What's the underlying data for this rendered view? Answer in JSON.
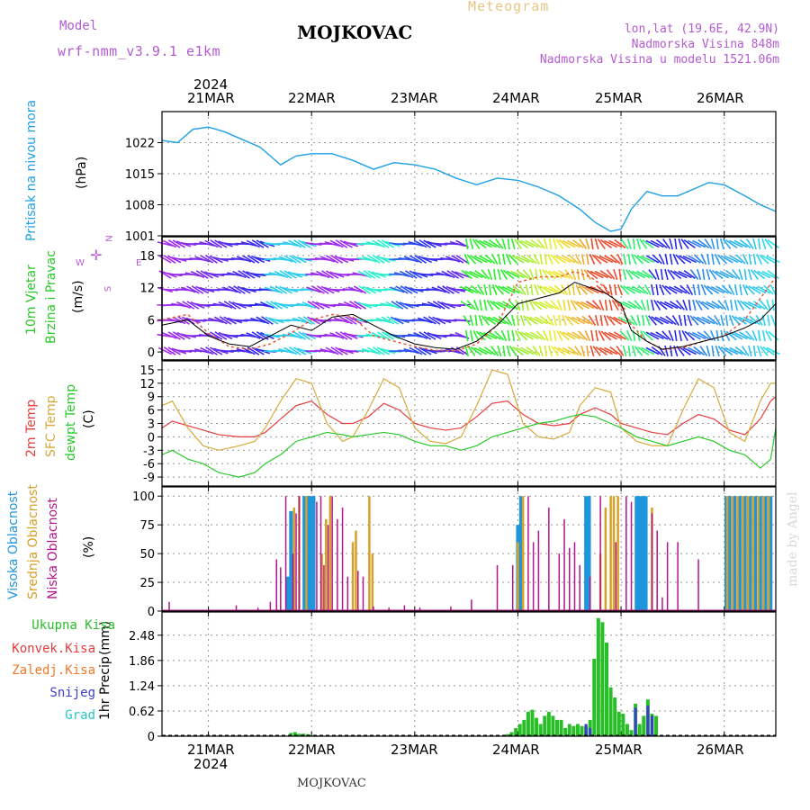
{
  "header": {
    "model_label": "Model",
    "model_name": "wrf-nmm_v3.9.1  e1km",
    "title": "MOJKOVAC",
    "subtitle": "Meteogram",
    "coords": "lon,lat (19.6E, 42.9N)",
    "altitude": "Nadmorska Visina 848m",
    "model_altitude": "Nadmorska Visina u modelu 1521.06m"
  },
  "footer": {
    "station": "MOJKOVAC",
    "credit": "made by Angel"
  },
  "colors": {
    "pressure": "#1ea0e6",
    "temp2m": "#e63c3c",
    "sfc": "#d7aa3c",
    "dewpt": "#28c828",
    "high_cloud": "#1e96dc",
    "mid_cloud": "#d7a028",
    "low_cloud": "#b4148c",
    "total_precip": "#28be28",
    "conv_precip": "#e63c3c",
    "frz_precip": "#f07828",
    "snow": "#3c3cd2",
    "graupel": "#28c8c8",
    "wind_speed": "#000000",
    "wind_gust": "#e65a3c"
  },
  "time_axis": {
    "top_year": "2024",
    "bottom_year": "2024",
    "labels": [
      "21MAR",
      "22MAR",
      "23MAR",
      "24MAR",
      "25MAR",
      "26MAR"
    ]
  },
  "chart_data": [
    {
      "type": "line",
      "panel": "pressure",
      "ylabel": "Pritisak na nivou mora",
      "unit": "(hPa)",
      "yticks": [
        "1001",
        "1008",
        "1015",
        "1022"
      ],
      "ylim": [
        1001,
        1029
      ],
      "xlim": [
        20.55,
        26.5
      ],
      "series": [
        {
          "x": [
            20.55,
            20.7,
            20.85,
            21.0,
            21.15,
            21.3,
            21.5,
            21.7,
            21.85,
            22.0,
            22.2,
            22.4,
            22.6,
            22.8,
            23.0,
            23.2,
            23.4,
            23.6,
            23.8,
            24.0,
            24.2,
            24.4,
            24.6,
            24.75,
            24.9,
            25.0,
            25.1,
            25.25,
            25.4,
            25.55,
            25.7,
            25.85,
            26.0,
            26.2,
            26.35,
            26.5
          ],
          "y": [
            1022.5,
            1022,
            1025,
            1025.5,
            1024.5,
            1023,
            1021,
            1017,
            1019,
            1019.5,
            1019.5,
            1018,
            1016,
            1017.5,
            1017,
            1016,
            1014,
            1012.5,
            1014,
            1013.5,
            1012,
            1010,
            1007,
            1004,
            1002,
            1002.5,
            1007,
            1011,
            1010,
            1010,
            1011.5,
            1013,
            1012.5,
            1010,
            1008,
            1006.5
          ]
        }
      ]
    },
    {
      "type": "line",
      "panel": "wind",
      "ylabel": "10m Vjetar",
      "ylabel2": "Brzina i Pravac",
      "unit": "(m/s)",
      "yticks": [
        "0",
        "6",
        "12",
        "18"
      ],
      "ylim": [
        -1.5,
        21.5
      ],
      "xlim": [
        20.55,
        26.5
      ],
      "compass": {
        "n": "N",
        "e": "E",
        "w": "W",
        "s": "S"
      },
      "series": [
        {
          "name": "speed",
          "x": [
            20.55,
            20.8,
            21.0,
            21.2,
            21.4,
            21.6,
            21.8,
            22.0,
            22.2,
            22.4,
            22.6,
            22.8,
            23.0,
            23.2,
            23.4,
            23.6,
            23.8,
            24.0,
            24.2,
            24.4,
            24.55,
            24.7,
            24.85,
            25.0,
            25.1,
            25.25,
            25.4,
            25.6,
            25.8,
            26.0,
            26.2,
            26.35,
            26.5
          ],
          "y": [
            5,
            6,
            3,
            1.5,
            1,
            3,
            5,
            4,
            6.5,
            7,
            5,
            3,
            1.5,
            0.8,
            0.5,
            2,
            5,
            9,
            10,
            11,
            13,
            12,
            11,
            9,
            4,
            2,
            0.5,
            1,
            2,
            3,
            4.5,
            6,
            9
          ]
        },
        {
          "name": "gust",
          "x": [
            20.55,
            20.8,
            21.0,
            21.2,
            21.4,
            21.6,
            21.8,
            22.0,
            22.2,
            22.4,
            22.6,
            22.8,
            23.0,
            23.2,
            23.4,
            23.6,
            23.8,
            24.0,
            24.2,
            24.4,
            24.55,
            24.7,
            24.85,
            25.0,
            25.1,
            25.25,
            25.4,
            25.6,
            25.8,
            26.0,
            26.2,
            26.35,
            26.5
          ],
          "y": [
            6,
            7,
            3.5,
            1,
            0.5,
            1.5,
            3.5,
            6,
            7,
            6.5,
            3,
            2,
            1,
            0.3,
            0.2,
            1.5,
            5,
            13,
            14,
            14,
            15,
            14,
            12,
            8,
            5,
            2,
            0.5,
            0.8,
            2,
            3,
            6,
            10,
            14
          ]
        }
      ]
    },
    {
      "type": "line",
      "panel": "temperature",
      "ylabel": "2m Temp",
      "ylabel2": "SFC Temp",
      "ylabel3": "dewpt Temp",
      "unit": "(C)",
      "yticks": [
        "-9",
        "-6",
        "-3",
        "0",
        "3",
        "6",
        "9",
        "12",
        "15"
      ],
      "ylim": [
        -11,
        17
      ],
      "xlim": [
        20.55,
        26.5
      ],
      "series": [
        {
          "name": "2m",
          "x": [
            20.55,
            20.65,
            20.8,
            20.95,
            21.1,
            21.3,
            21.45,
            21.55,
            21.7,
            21.85,
            22.0,
            22.15,
            22.3,
            22.4,
            22.55,
            22.7,
            22.85,
            23.0,
            23.15,
            23.3,
            23.45,
            23.6,
            23.75,
            23.9,
            24.05,
            24.2,
            24.35,
            24.5,
            24.6,
            24.75,
            24.9,
            25.0,
            25.15,
            25.3,
            25.45,
            25.6,
            25.75,
            25.9,
            26.05,
            26.2,
            26.35,
            26.45,
            26.5
          ],
          "y": [
            2,
            3.5,
            2.5,
            1.5,
            0.5,
            0,
            0,
            1,
            4,
            7,
            8,
            5,
            3,
            3,
            4.5,
            7.5,
            6,
            3,
            2,
            1.5,
            2,
            4.5,
            7.5,
            8,
            5,
            3,
            2.5,
            3,
            5,
            6.5,
            5,
            3,
            2,
            1,
            0.5,
            3,
            5,
            4,
            1.5,
            0.5,
            4,
            8,
            9
          ]
        },
        {
          "name": "sfc",
          "x": [
            20.55,
            20.65,
            20.8,
            20.95,
            21.1,
            21.3,
            21.45,
            21.55,
            21.7,
            21.85,
            22.0,
            22.15,
            22.3,
            22.4,
            22.55,
            22.7,
            22.85,
            23.0,
            23.15,
            23.3,
            23.45,
            23.6,
            23.75,
            23.9,
            24.05,
            24.2,
            24.35,
            24.5,
            24.6,
            24.75,
            24.9,
            25.0,
            25.15,
            25.3,
            25.45,
            25.6,
            25.75,
            25.9,
            26.05,
            26.2,
            26.35,
            26.45,
            26.5
          ],
          "y": [
            7,
            8,
            2,
            -2,
            -3,
            -2,
            -1,
            2,
            8,
            13,
            12,
            3,
            -1,
            0,
            6,
            13,
            11,
            2,
            -1,
            -1.5,
            0,
            7,
            15,
            14,
            3,
            0,
            -0.5,
            1,
            7,
            11,
            10,
            2,
            -1,
            -2,
            -2,
            6,
            13,
            11,
            1,
            -1,
            8,
            12,
            12
          ]
        },
        {
          "name": "dewpt",
          "x": [
            20.55,
            20.65,
            20.8,
            20.95,
            21.1,
            21.3,
            21.45,
            21.55,
            21.7,
            21.85,
            22.0,
            22.15,
            22.3,
            22.4,
            22.55,
            22.7,
            22.85,
            23.0,
            23.15,
            23.3,
            23.45,
            23.6,
            23.75,
            23.9,
            24.05,
            24.2,
            24.35,
            24.5,
            24.6,
            24.75,
            24.9,
            25.0,
            25.15,
            25.3,
            25.45,
            25.6,
            25.75,
            25.9,
            26.05,
            26.2,
            26.35,
            26.45,
            26.5
          ],
          "y": [
            -4,
            -3,
            -5,
            -6,
            -8,
            -9,
            -8,
            -6,
            -4,
            -1,
            0,
            1,
            0.5,
            0,
            0.5,
            1,
            0.5,
            -1,
            -2,
            -2,
            -3,
            -2,
            0,
            1,
            2,
            3,
            3.5,
            4.5,
            5,
            4.5,
            3,
            2,
            0,
            -1,
            -2,
            -1,
            0,
            -1,
            -3,
            -4,
            -7,
            -5,
            2
          ]
        }
      ]
    },
    {
      "type": "bar",
      "panel": "cloud",
      "ylabel": "Visoka Oblacnost",
      "ylabel2": "Srednja Oblacnost",
      "ylabel3": "Niska Oblacnost",
      "unit": "(%)",
      "yticks": [
        "0",
        "25",
        "50",
        "75",
        "100"
      ],
      "ylim": [
        0,
        108
      ],
      "xlim": [
        20.55,
        26.5
      ],
      "series": [
        {
          "name": "high",
          "x": [
            21.77,
            21.8,
            21.93,
            21.96,
            21.99,
            22.02,
            24.0,
            24.03,
            25.15,
            25.18,
            25.21,
            25.24,
            24.66,
            24.69,
            26.02,
            26.05,
            26.1,
            26.15,
            26.2,
            26.25,
            26.3,
            26.35,
            26.4,
            26.45
          ],
          "y": [
            30,
            87,
            100,
            100,
            100,
            100,
            75,
            100,
            100,
            100,
            100,
            100,
            100,
            100,
            100,
            100,
            100,
            100,
            100,
            100,
            100,
            100,
            100,
            100
          ]
        },
        {
          "name": "mid",
          "x": [
            21.83,
            21.88,
            21.95,
            22.1,
            22.14,
            22.18,
            22.4,
            22.43,
            22.56,
            22.59,
            24.0,
            24.05,
            24.8,
            24.85,
            24.9,
            24.93,
            24.97,
            25.3,
            26.03,
            26.08,
            26.13,
            26.18,
            26.23,
            26.28,
            26.33,
            26.38,
            26.43
          ],
          "y": [
            90,
            100,
            100,
            50,
            80,
            100,
            60,
            70,
            100,
            50,
            60,
            100,
            50,
            90,
            100,
            100,
            100,
            90,
            100,
            100,
            100,
            100,
            100,
            100,
            100,
            100,
            100
          ]
        },
        {
          "name": "low",
          "x": [
            20.62,
            21.27,
            21.48,
            21.6,
            21.66,
            21.7,
            21.75,
            21.82,
            21.85,
            21.88,
            22.05,
            22.09,
            22.12,
            22.16,
            22.2,
            22.25,
            22.3,
            22.35,
            22.45,
            22.5,
            22.6,
            22.75,
            22.9,
            23.05,
            23.35,
            23.55,
            23.8,
            23.95,
            24.1,
            24.15,
            24.2,
            24.3,
            24.4,
            24.45,
            24.5,
            24.55,
            24.6,
            24.7,
            24.8,
            24.95,
            25.05,
            25.1,
            25.3,
            25.35,
            25.4,
            25.45,
            25.55,
            25.75
          ],
          "y": [
            8,
            5,
            3,
            8,
            45,
            38,
            100,
            50,
            85,
            100,
            95,
            100,
            40,
            75,
            100,
            80,
            90,
            30,
            35,
            30,
            4,
            3,
            5,
            3,
            4,
            10,
            40,
            40,
            100,
            60,
            70,
            90,
            50,
            80,
            55,
            60,
            40,
            30,
            100,
            60,
            100,
            95,
            85,
            70,
            12,
            60,
            60,
            45
          ]
        }
      ]
    },
    {
      "type": "bar",
      "panel": "precip",
      "ylabel": "1hr Precip",
      "unit": "(mm)",
      "yticks": [
        "0",
        "0.62",
        "1.24",
        "1.86",
        "2.48"
      ],
      "ylim": [
        0,
        3.05
      ],
      "xlim": [
        20.55,
        26.5
      ],
      "legend": [
        "Ukupna  Kisa",
        "Konvek.Kisa",
        "Zaledj.Kisa",
        "Snijeg",
        "Grad"
      ],
      "series": [
        {
          "name": "total",
          "x": [
            21.8,
            21.84,
            21.88,
            21.92,
            21.96,
            22.0,
            22.05,
            23.9,
            23.94,
            23.98,
            24.02,
            24.06,
            24.1,
            24.14,
            24.18,
            24.22,
            24.26,
            24.3,
            24.34,
            24.38,
            24.42,
            24.46,
            24.5,
            24.54,
            24.58,
            24.62,
            24.66,
            24.7,
            24.74,
            24.78,
            24.82,
            24.86,
            24.9,
            24.94,
            24.98,
            25.02,
            25.06,
            25.1,
            25.14,
            25.18,
            25.22,
            25.26,
            25.3,
            25.34
          ],
          "y": [
            0.08,
            0.1,
            0.06,
            0.06,
            0.05,
            0.02,
            0.02,
            0.05,
            0.1,
            0.2,
            0.3,
            0.4,
            0.6,
            0.65,
            0.45,
            0.3,
            0.5,
            0.6,
            0.5,
            0.4,
            0.4,
            0.2,
            0.3,
            0.25,
            0.3,
            0.25,
            0.25,
            0.4,
            1.9,
            2.9,
            2.8,
            2.3,
            1.2,
            0.95,
            0.6,
            0.55,
            0.3,
            0.15,
            0.8,
            0.3,
            0.5,
            0.9,
            0.55,
            0.5
          ]
        },
        {
          "name": "snow",
          "x": [
            24.66,
            24.7,
            25.14,
            25.26,
            25.3
          ],
          "y": [
            0.3,
            0.2,
            0.7,
            0.75,
            0.5
          ]
        }
      ]
    }
  ]
}
